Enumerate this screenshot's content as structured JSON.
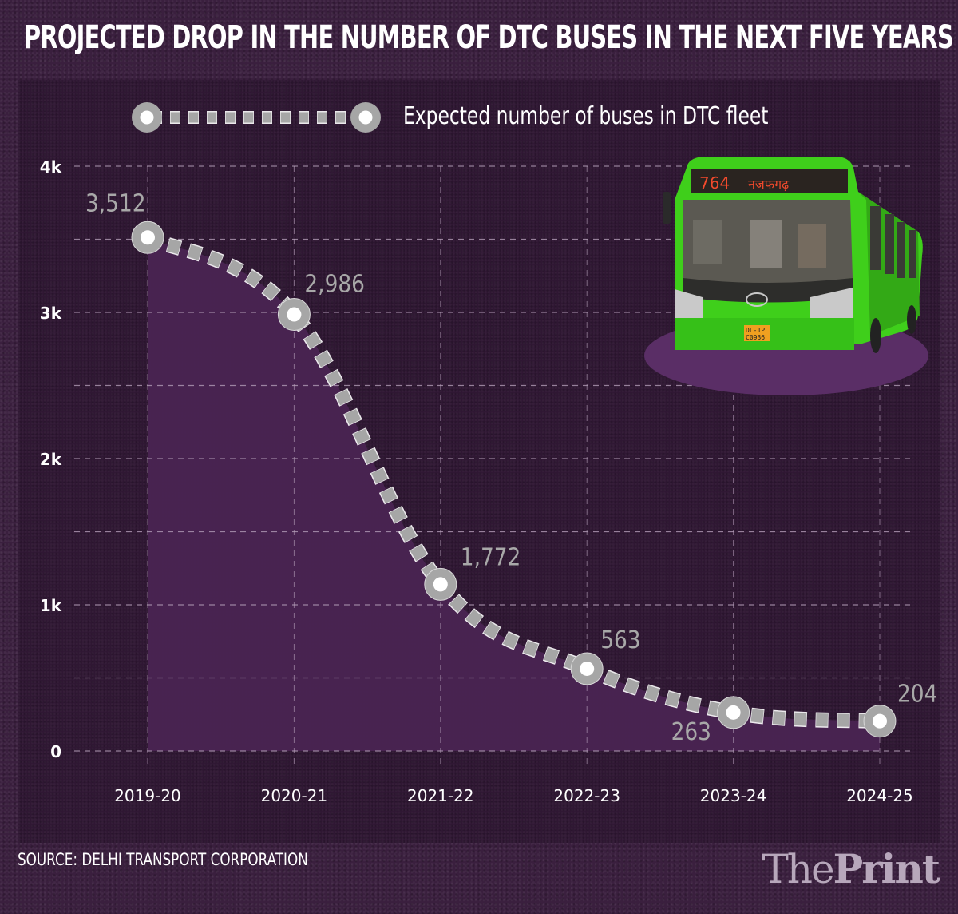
{
  "header": {
    "title": "PROJECTED DROP IN THE NUMBER OF DTC BUSES IN THE NEXT FIVE YEARS"
  },
  "chart_data": {
    "type": "line",
    "title": "PROJECTED DROP IN THE NUMBER OF DTC BUSES IN THE NEXT FIVE YEARS",
    "xlabel": "",
    "ylabel": "",
    "categories": [
      "2019-20",
      "2020-21",
      "2021-22",
      "2022-23",
      "2023-24",
      "2024-25"
    ],
    "series": [
      {
        "name": "Expected number of buses in DTC fleet",
        "values": [
          3512,
          2986,
          1772,
          563,
          263,
          204
        ],
        "labels": [
          "3,512",
          "2,986",
          "1,772",
          "563",
          "263",
          "204"
        ]
      }
    ],
    "ylim": [
      0,
      4000
    ],
    "yticks": [
      0,
      1000,
      2000,
      3000,
      4000
    ],
    "ytick_labels": [
      "0",
      "1k",
      "2k",
      "3k",
      "4k"
    ],
    "grid": true,
    "grid_step": 500,
    "legend": "top-left",
    "area_fill": true,
    "colors": {
      "background": "#3a1f3e",
      "panel": "#2f1733",
      "area": "#4a2452",
      "marker": "#a6a6a6",
      "marker_center": "#ffffff",
      "label": "#a8a8a8",
      "grid": "#b9a3bd",
      "ellipse": "#5a2e66"
    }
  },
  "legend": {
    "label": "Expected number of buses in DTC fleet"
  },
  "illustration": {
    "description": "Green DTC bus on purple ellipse",
    "route_number": "764",
    "destination": "नजफगढ़",
    "plate_line1": "DL-1P",
    "plate_line2": "C0936"
  },
  "footer": {
    "source": "SOURCE: DELHI TRANSPORT CORPORATION",
    "brand_light": "The",
    "brand_bold": "Print"
  }
}
